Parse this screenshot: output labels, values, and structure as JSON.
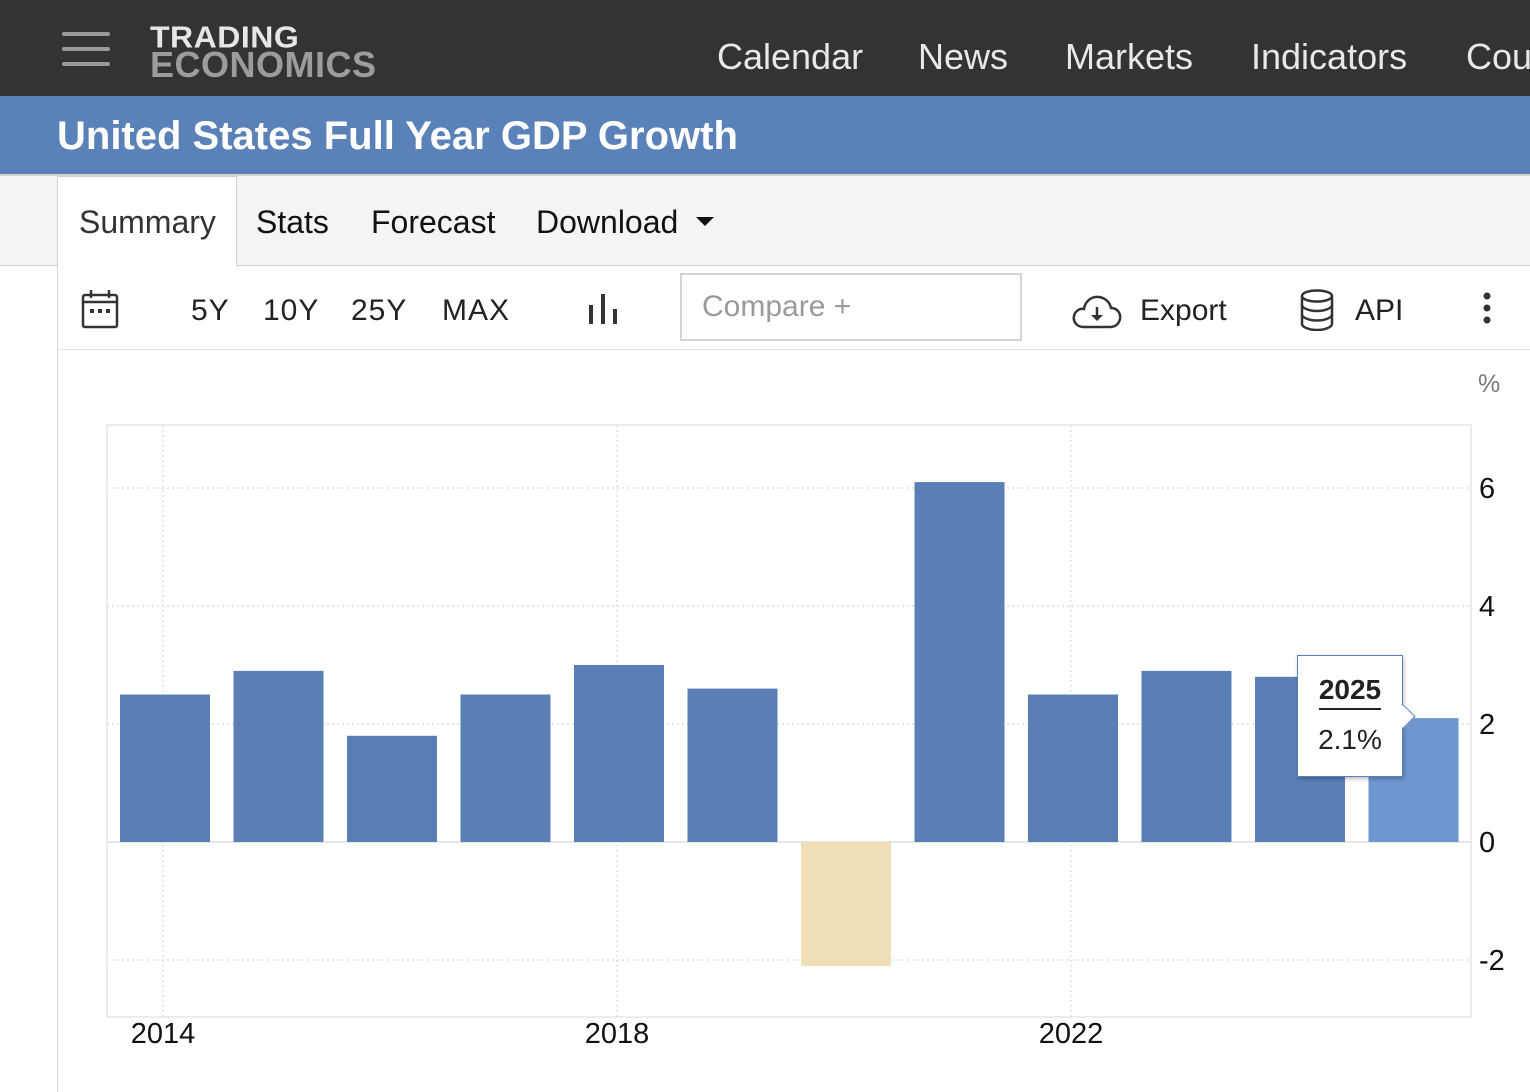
{
  "brand": {
    "line1": "TRADING",
    "line2": "ECONOMICS"
  },
  "nav": {
    "items": [
      "Calendar",
      "News",
      "Markets",
      "Indicators",
      "Cou"
    ]
  },
  "page": {
    "title": "United States Full Year GDP Growth"
  },
  "tabs": {
    "summary": "Summary",
    "stats": "Stats",
    "forecast": "Forecast",
    "download": "Download"
  },
  "toolbar": {
    "ranges": [
      "5Y",
      "10Y",
      "25Y",
      "MAX"
    ],
    "compare_placeholder": "Compare +",
    "export": "Export",
    "api": "API"
  },
  "tooltip": {
    "year": "2025",
    "value": "2.1%"
  },
  "colors": {
    "bar": "#5a7fb7",
    "negative": "#f0dfb6",
    "highlight": "#6e97d0",
    "nav_bg": "#333333",
    "title_bg": "#5a82b8"
  },
  "chart_data": {
    "type": "bar",
    "unit": "%",
    "categories": [
      "2014",
      "2015",
      "2016",
      "2017",
      "2018",
      "2019",
      "2020",
      "2021",
      "2022",
      "2023",
      "2024",
      "2025"
    ],
    "values": [
      2.5,
      2.9,
      1.8,
      2.5,
      3.0,
      2.6,
      -2.1,
      6.1,
      2.5,
      2.9,
      2.8,
      2.1
    ],
    "x_tick_labels": [
      "2014",
      "2018",
      "2022"
    ],
    "y_ticks": [
      -2,
      0,
      2,
      4,
      6
    ],
    "ylim": [
      -3,
      7
    ],
    "grid": true,
    "y_axis_position": "right",
    "highlighted": "2025"
  }
}
